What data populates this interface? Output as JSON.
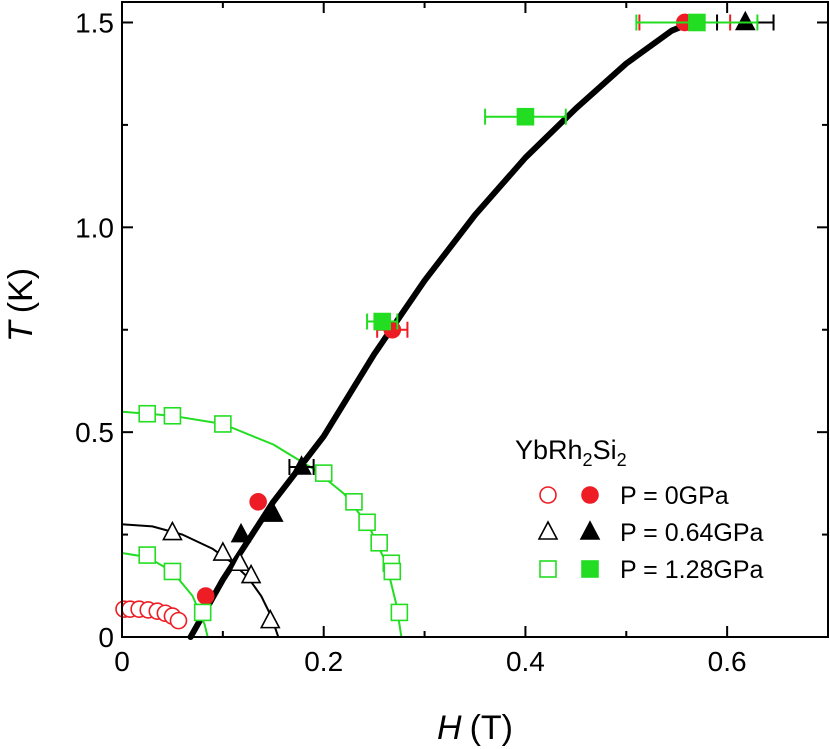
{
  "chart_data": {
    "type": "scatter",
    "xlabel": {
      "symbol": "H",
      "unit": "(T)"
    },
    "ylabel": {
      "symbol": "T",
      "unit": "(K)"
    },
    "xlim": [
      0,
      0.7
    ],
    "ylim": [
      0,
      1.55
    ],
    "x_ticks": [
      0,
      0.2,
      0.4,
      0.6
    ],
    "x_tick_labels": [
      "0",
      "0.2",
      "0.4",
      "0.6"
    ],
    "x_minor_ticks": [
      0.1,
      0.3,
      0.5
    ],
    "y_ticks": [
      0,
      0.5,
      1.0,
      1.5
    ],
    "y_tick_labels": [
      "0",
      "0.5",
      "1.0",
      "1.5"
    ],
    "y_minor_ticks": [
      0.25,
      0.75,
      1.25
    ],
    "legend": {
      "title": {
        "base": "YbRh",
        "sub1": "2",
        "mid": "Si",
        "sub2": "2"
      },
      "position": "lower-right",
      "entries": [
        {
          "label": "P = 0GPa",
          "marker": "circle",
          "color": "#ee1c24"
        },
        {
          "label": "P = 0.64GPa",
          "marker": "triangle",
          "color": "#000000"
        },
        {
          "label": "P = 1.28GPa",
          "marker": "square",
          "color": "#22dd22"
        }
      ]
    },
    "series": [
      {
        "name": "P = 0GPa open",
        "marker": "circle",
        "filled": false,
        "color": "#ee1c24",
        "points": [
          [
            0.002,
            0.068
          ],
          [
            0.008,
            0.068
          ],
          [
            0.017,
            0.068
          ],
          [
            0.026,
            0.066
          ],
          [
            0.035,
            0.063
          ],
          [
            0.043,
            0.058
          ],
          [
            0.05,
            0.051
          ],
          [
            0.056,
            0.04
          ]
        ]
      },
      {
        "name": "P = 0GPa filled",
        "marker": "circle",
        "filled": true,
        "color": "#ee1c24",
        "points": [
          [
            0.083,
            0.1
          ],
          [
            0.135,
            0.33
          ],
          [
            0.268,
            0.75
          ],
          [
            0.558,
            1.5
          ]
        ],
        "xerr": [
          0,
          0,
          0.015,
          0.045
        ]
      },
      {
        "name": "P = 0.64GPa open",
        "marker": "triangle",
        "filled": false,
        "color": "#000000",
        "points": [
          [
            0.05,
            0.255
          ],
          [
            0.1,
            0.205
          ],
          [
            0.117,
            0.18
          ],
          [
            0.128,
            0.15
          ],
          [
            0.147,
            0.04
          ]
        ]
      },
      {
        "name": "P = 0.64GPa filled",
        "marker": "triangle",
        "filled": true,
        "color": "#000000",
        "points": [
          [
            0.118,
            0.25
          ],
          [
            0.15,
            0.3
          ],
          [
            0.178,
            0.415
          ],
          [
            0.618,
            1.5
          ]
        ],
        "xerr": [
          0,
          0,
          0.012,
          0.028
        ]
      },
      {
        "name": "P = 1.28GPa open",
        "marker": "square",
        "filled": false,
        "color": "#22dd22",
        "points": [
          [
            0.025,
            0.545
          ],
          [
            0.05,
            0.54
          ],
          [
            0.1,
            0.52
          ],
          [
            0.2,
            0.4
          ],
          [
            0.23,
            0.33
          ],
          [
            0.243,
            0.28
          ],
          [
            0.255,
            0.23
          ],
          [
            0.267,
            0.18
          ],
          [
            0.268,
            0.16
          ],
          [
            0.275,
            0.06
          ],
          [
            0.025,
            0.2
          ],
          [
            0.05,
            0.16
          ],
          [
            0.08,
            0.06
          ]
        ]
      },
      {
        "name": "P = 1.28GPa filled",
        "marker": "square",
        "filled": true,
        "color": "#22dd22",
        "points": [
          [
            0.258,
            0.77
          ],
          [
            0.4,
            1.27
          ],
          [
            0.57,
            1.5
          ]
        ],
        "xerr": [
          0.015,
          0.04,
          0.06
        ]
      }
    ],
    "curves": [
      {
        "name": "main line (filled data)",
        "color": "#000000",
        "width_class": "thick",
        "points": [
          [
            0.068,
            0
          ],
          [
            0.1,
            0.14
          ],
          [
            0.15,
            0.33
          ],
          [
            0.2,
            0.49
          ],
          [
            0.25,
            0.69
          ],
          [
            0.3,
            0.87
          ],
          [
            0.35,
            1.03
          ],
          [
            0.4,
            1.17
          ],
          [
            0.45,
            1.29
          ],
          [
            0.5,
            1.4
          ],
          [
            0.545,
            1.48
          ],
          [
            0.565,
            1.5
          ]
        ]
      },
      {
        "name": "0GPa dome",
        "color": "#ee1c24",
        "width_class": "thin",
        "points": [
          [
            0,
            0.068
          ],
          [
            0.02,
            0.067
          ],
          [
            0.035,
            0.063
          ],
          [
            0.045,
            0.057
          ],
          [
            0.052,
            0.05
          ],
          [
            0.058,
            0.04
          ],
          [
            0.062,
            0.03
          ]
        ]
      },
      {
        "name": "0.64GPa dome",
        "color": "#000000",
        "width_class": "thin",
        "points": [
          [
            0,
            0.275
          ],
          [
            0.03,
            0.27
          ],
          [
            0.06,
            0.25
          ],
          [
            0.09,
            0.215
          ],
          [
            0.11,
            0.18
          ],
          [
            0.125,
            0.145
          ],
          [
            0.138,
            0.1
          ],
          [
            0.148,
            0.05
          ],
          [
            0.155,
            0
          ]
        ]
      },
      {
        "name": "1.28GPa outer dome",
        "color": "#22dd22",
        "width_class": "thin",
        "points": [
          [
            0,
            0.55
          ],
          [
            0.05,
            0.54
          ],
          [
            0.1,
            0.52
          ],
          [
            0.15,
            0.47
          ],
          [
            0.19,
            0.41
          ],
          [
            0.22,
            0.35
          ],
          [
            0.245,
            0.27
          ],
          [
            0.262,
            0.18
          ],
          [
            0.272,
            0.08
          ],
          [
            0.277,
            0
          ]
        ]
      },
      {
        "name": "1.28GPa inner dome",
        "color": "#22dd22",
        "width_class": "thin",
        "points": [
          [
            0,
            0.205
          ],
          [
            0.025,
            0.195
          ],
          [
            0.05,
            0.16
          ],
          [
            0.07,
            0.1
          ],
          [
            0.082,
            0.03
          ],
          [
            0.085,
            0
          ]
        ]
      }
    ]
  }
}
